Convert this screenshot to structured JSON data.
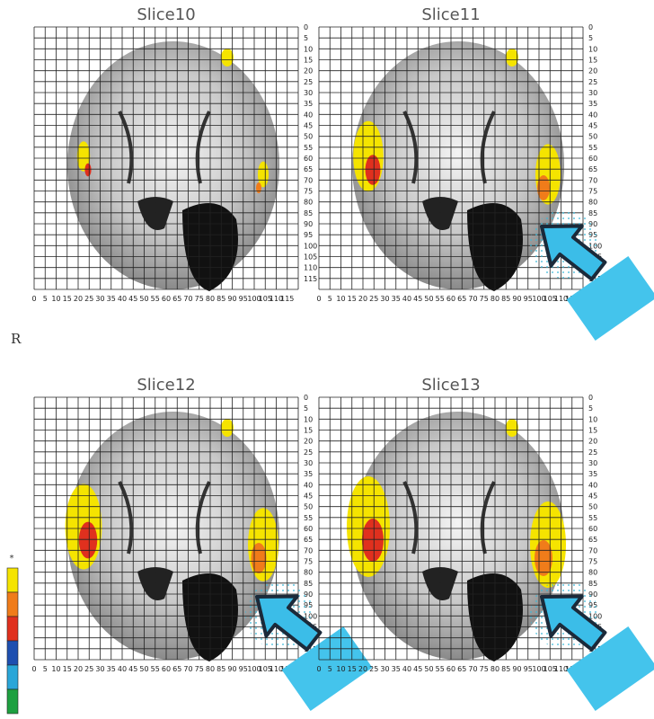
{
  "panels": [
    {
      "title": "Slice10"
    },
    {
      "title": "Slice11"
    },
    {
      "title": "Slice12"
    },
    {
      "title": "Slice13"
    }
  ],
  "x_ticks": [
    0,
    5,
    10,
    15,
    20,
    25,
    30,
    35,
    40,
    45,
    50,
    55,
    60,
    65,
    70,
    75,
    80,
    85,
    90,
    95,
    100,
    105,
    110,
    115
  ],
  "y_ticks": [
    0,
    5,
    10,
    15,
    20,
    25,
    30,
    35,
    40,
    45,
    50,
    55,
    60,
    65,
    70,
    75,
    80,
    85,
    90,
    95,
    100,
    105,
    110,
    115
  ],
  "side_label": "R",
  "colorbar": {
    "top_label": "*"
  }
}
